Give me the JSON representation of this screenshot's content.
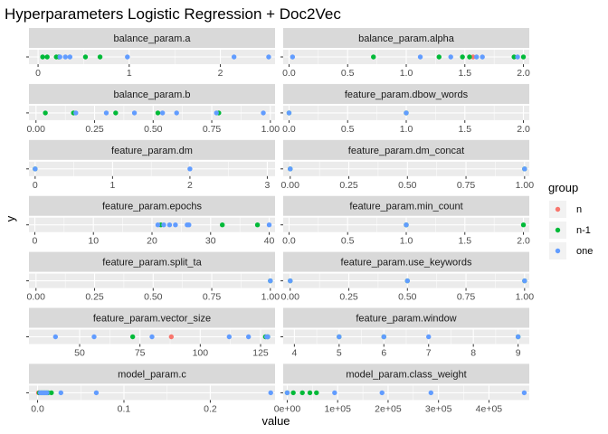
{
  "chart_data": {
    "type": "scatter",
    "title": "Hyperparameters Logistic Regression + Doc2Vec",
    "xlabel": "value",
    "ylabel": "y",
    "legend": {
      "title": "group",
      "position": "right",
      "items": [
        {
          "name": "n",
          "color": "#F8766D"
        },
        {
          "name": "n-1",
          "color": "#00BA38"
        },
        {
          "name": "one",
          "color": "#619CFF"
        }
      ]
    },
    "facets": [
      {
        "name": "balance_param.a",
        "xlim": [
          -0.1,
          2.6
        ],
        "ticks": [
          {
            "v": 0,
            "label": "0"
          },
          {
            "v": 1,
            "label": "1"
          },
          {
            "v": 2,
            "label": "2"
          }
        ],
        "points": [
          {
            "x": 0.05,
            "group": "n-1"
          },
          {
            "x": 0.1,
            "group": "n-1"
          },
          {
            "x": 0.2,
            "group": "n-1"
          },
          {
            "x": 0.23,
            "group": "n-1"
          },
          {
            "x": 0.52,
            "group": "n-1"
          },
          {
            "x": 0.68,
            "group": "n-1"
          },
          {
            "x": 0.24,
            "group": "one"
          },
          {
            "x": 0.3,
            "group": "one"
          },
          {
            "x": 0.35,
            "group": "one"
          },
          {
            "x": 0.98,
            "group": "one"
          },
          {
            "x": 2.15,
            "group": "one"
          },
          {
            "x": 2.53,
            "group": "one"
          }
        ]
      },
      {
        "name": "balance_param.alpha",
        "xlim": [
          -0.05,
          2.05
        ],
        "ticks": [
          {
            "v": 0,
            "label": "0.0"
          },
          {
            "v": 0.5,
            "label": "0.5"
          },
          {
            "v": 1,
            "label": "1.0"
          },
          {
            "v": 1.5,
            "label": "1.5"
          },
          {
            "v": 2,
            "label": "2.0"
          }
        ],
        "points": [
          {
            "x": 1.57,
            "group": "n"
          },
          {
            "x": 0.72,
            "group": "n-1"
          },
          {
            "x": 1.28,
            "group": "n-1"
          },
          {
            "x": 1.48,
            "group": "n-1"
          },
          {
            "x": 1.54,
            "group": "n-1"
          },
          {
            "x": 1.92,
            "group": "n-1"
          },
          {
            "x": 2.0,
            "group": "n-1"
          },
          {
            "x": 0.03,
            "group": "one"
          },
          {
            "x": 1.12,
            "group": "one"
          },
          {
            "x": 1.38,
            "group": "one"
          },
          {
            "x": 1.6,
            "group": "one"
          },
          {
            "x": 1.65,
            "group": "one"
          },
          {
            "x": 1.95,
            "group": "one"
          }
        ]
      },
      {
        "name": "balance_param.b",
        "xlim": [
          -0.03,
          1.02
        ],
        "ticks": [
          {
            "v": 0,
            "label": "0.00"
          },
          {
            "v": 0.25,
            "label": "0.25"
          },
          {
            "v": 0.5,
            "label": "0.50"
          },
          {
            "v": 0.75,
            "label": "0.75"
          },
          {
            "v": 1,
            "label": "1.00"
          }
        ],
        "points": [
          {
            "x": 0.04,
            "group": "n-1"
          },
          {
            "x": 0.16,
            "group": "n-1"
          },
          {
            "x": 0.34,
            "group": "n-1"
          },
          {
            "x": 0.52,
            "group": "n-1"
          },
          {
            "x": 0.78,
            "group": "n-1"
          },
          {
            "x": 0.17,
            "group": "one"
          },
          {
            "x": 0.3,
            "group": "one"
          },
          {
            "x": 0.42,
            "group": "one"
          },
          {
            "x": 0.54,
            "group": "one"
          },
          {
            "x": 0.6,
            "group": "one"
          },
          {
            "x": 0.77,
            "group": "one"
          },
          {
            "x": 0.97,
            "group": "one"
          }
        ]
      },
      {
        "name": "feature_param.dbow_words",
        "xlim": [
          -0.05,
          2.05
        ],
        "ticks": [
          {
            "v": 0,
            "label": "0.0"
          },
          {
            "v": 0.5,
            "label": "0.5"
          },
          {
            "v": 1,
            "label": "1.0"
          },
          {
            "v": 1.5,
            "label": "1.5"
          },
          {
            "v": 2,
            "label": "2.0"
          }
        ],
        "points": [
          {
            "x": 0,
            "group": "n-1"
          },
          {
            "x": 1,
            "group": "n-1"
          },
          {
            "x": 0,
            "group": "one"
          },
          {
            "x": 1,
            "group": "one"
          }
        ]
      },
      {
        "name": "feature_param.dm",
        "xlim": [
          -0.08,
          3.1
        ],
        "ticks": [
          {
            "v": 0,
            "label": "0"
          },
          {
            "v": 1,
            "label": "1"
          },
          {
            "v": 2,
            "label": "2"
          },
          {
            "v": 3,
            "label": "3"
          }
        ],
        "points": [
          {
            "x": 0,
            "group": "n-1"
          },
          {
            "x": 0,
            "group": "one"
          },
          {
            "x": 2,
            "group": "one"
          }
        ]
      },
      {
        "name": "feature_param.dm_concat",
        "xlim": [
          -0.03,
          1.02
        ],
        "ticks": [
          {
            "v": 0,
            "label": "0.00"
          },
          {
            "v": 0.25,
            "label": "0.25"
          },
          {
            "v": 0.5,
            "label": "0.50"
          },
          {
            "v": 0.75,
            "label": "0.75"
          },
          {
            "v": 1,
            "label": "1.00"
          }
        ],
        "points": [
          {
            "x": 0,
            "group": "n-1"
          },
          {
            "x": 1,
            "group": "n-1"
          },
          {
            "x": 0,
            "group": "one"
          },
          {
            "x": 1,
            "group": "one"
          }
        ]
      },
      {
        "name": "feature_param.epochs",
        "xlim": [
          -1,
          41
        ],
        "ticks": [
          {
            "v": 0,
            "label": "0"
          },
          {
            "v": 10,
            "label": "10"
          },
          {
            "v": 20,
            "label": "20"
          },
          {
            "v": 30,
            "label": "30"
          },
          {
            "v": 40,
            "label": "40"
          }
        ],
        "points": [
          {
            "x": 21.5,
            "group": "n-1"
          },
          {
            "x": 32,
            "group": "n-1"
          },
          {
            "x": 38,
            "group": "n-1"
          },
          {
            "x": 21,
            "group": "one"
          },
          {
            "x": 22,
            "group": "one"
          },
          {
            "x": 23,
            "group": "one"
          },
          {
            "x": 24,
            "group": "one"
          },
          {
            "x": 26,
            "group": "one"
          },
          {
            "x": 26.3,
            "group": "one"
          },
          {
            "x": 40,
            "group": "one"
          }
        ]
      },
      {
        "name": "feature_param.min_count",
        "xlim": [
          -0.05,
          2.05
        ],
        "ticks": [
          {
            "v": 0,
            "label": "0.0"
          },
          {
            "v": 0.5,
            "label": "0.5"
          },
          {
            "v": 1,
            "label": "1.0"
          },
          {
            "v": 1.5,
            "label": "1.5"
          },
          {
            "v": 2,
            "label": "2.0"
          }
        ],
        "points": [
          {
            "x": 1,
            "group": "n-1"
          },
          {
            "x": 2,
            "group": "n-1"
          },
          {
            "x": 1,
            "group": "one"
          }
        ]
      },
      {
        "name": "feature_param.split_ta",
        "xlim": [
          -0.03,
          1.02
        ],
        "ticks": [
          {
            "v": 0,
            "label": "0.00"
          },
          {
            "v": 0.25,
            "label": "0.25"
          },
          {
            "v": 0.5,
            "label": "0.50"
          },
          {
            "v": 0.75,
            "label": "0.75"
          },
          {
            "v": 1,
            "label": "1.00"
          }
        ],
        "points": [
          {
            "x": 1,
            "group": "n-1"
          },
          {
            "x": 1,
            "group": "one"
          }
        ]
      },
      {
        "name": "feature_param.use_keywords",
        "xlim": [
          -0.03,
          1.02
        ],
        "ticks": [
          {
            "v": 0,
            "label": "0.00"
          },
          {
            "v": 0.25,
            "label": "0.25"
          },
          {
            "v": 0.5,
            "label": "0.50"
          },
          {
            "v": 0.75,
            "label": "0.75"
          },
          {
            "v": 1,
            "label": "1.00"
          }
        ],
        "points": [
          {
            "x": 0,
            "group": "n-1"
          },
          {
            "x": 0.5,
            "group": "n-1"
          },
          {
            "x": 1,
            "group": "n-1"
          },
          {
            "x": 0,
            "group": "one"
          },
          {
            "x": 0.5,
            "group": "one"
          },
          {
            "x": 1,
            "group": "one"
          }
        ]
      },
      {
        "name": "feature_param.vector_size",
        "xlim": [
          29,
          131
        ],
        "ticks": [
          {
            "v": 50,
            "label": "50"
          },
          {
            "v": 75,
            "label": "75"
          },
          {
            "v": 100,
            "label": "100"
          },
          {
            "v": 125,
            "label": "125"
          }
        ],
        "points": [
          {
            "x": 88,
            "group": "n"
          },
          {
            "x": 72,
            "group": "n-1"
          },
          {
            "x": 127,
            "group": "n-1"
          },
          {
            "x": 128,
            "group": "n-1"
          },
          {
            "x": 40,
            "group": "one"
          },
          {
            "x": 56,
            "group": "one"
          },
          {
            "x": 80,
            "group": "one"
          },
          {
            "x": 112,
            "group": "one"
          },
          {
            "x": 120,
            "group": "one"
          },
          {
            "x": 127.5,
            "group": "one"
          },
          {
            "x": 128,
            "group": "one"
          }
        ]
      },
      {
        "name": "feature_param.window",
        "xlim": [
          3.75,
          9.25
        ],
        "ticks": [
          {
            "v": 4,
            "label": "4"
          },
          {
            "v": 5,
            "label": "5"
          },
          {
            "v": 6,
            "label": "6"
          },
          {
            "v": 7,
            "label": "7"
          },
          {
            "v": 8,
            "label": "8"
          },
          {
            "v": 9,
            "label": "9"
          }
        ],
        "points": [
          {
            "x": 5,
            "group": "n-1"
          },
          {
            "x": 6,
            "group": "n-1"
          },
          {
            "x": 9,
            "group": "n-1"
          },
          {
            "x": 5,
            "group": "one"
          },
          {
            "x": 6,
            "group": "one"
          },
          {
            "x": 7,
            "group": "one"
          },
          {
            "x": 9,
            "group": "one"
          }
        ]
      },
      {
        "name": "model_param.c",
        "xlim": [
          -0.01,
          0.275
        ],
        "ticks": [
          {
            "v": 0,
            "label": "0.0"
          },
          {
            "v": 0.1,
            "label": "0.1"
          },
          {
            "v": 0.2,
            "label": "0.2"
          }
        ],
        "points": [
          {
            "x": 0.001,
            "group": "n"
          },
          {
            "x": 0.002,
            "group": "n-1"
          },
          {
            "x": 0.004,
            "group": "n-1"
          },
          {
            "x": 0.006,
            "group": "n-1"
          },
          {
            "x": 0.008,
            "group": "n-1"
          },
          {
            "x": 0.01,
            "group": "n-1"
          },
          {
            "x": 0.012,
            "group": "n-1"
          },
          {
            "x": 0.016,
            "group": "n-1"
          },
          {
            "x": 0.003,
            "group": "one"
          },
          {
            "x": 0.005,
            "group": "one"
          },
          {
            "x": 0.007,
            "group": "one"
          },
          {
            "x": 0.009,
            "group": "one"
          },
          {
            "x": 0.011,
            "group": "one"
          },
          {
            "x": 0.027,
            "group": "one"
          },
          {
            "x": 0.068,
            "group": "one"
          },
          {
            "x": 0.27,
            "group": "one"
          }
        ]
      },
      {
        "name": "model_param.class_weight",
        "xlim": [
          -8000,
          480000
        ],
        "ticks": [
          {
            "v": 0,
            "label": "0e+00"
          },
          {
            "v": 100000,
            "label": "1e+05"
          },
          {
            "v": 200000,
            "label": "2e+05"
          },
          {
            "v": 300000,
            "label": "3e+05"
          },
          {
            "v": 400000,
            "label": "4e+05"
          }
        ],
        "points": [
          {
            "x": 0,
            "group": "n-1"
          },
          {
            "x": 12000,
            "group": "n-1"
          },
          {
            "x": 30000,
            "group": "n-1"
          },
          {
            "x": 45000,
            "group": "n-1"
          },
          {
            "x": 58000,
            "group": "n-1"
          },
          {
            "x": 0,
            "group": "one"
          },
          {
            "x": 94000,
            "group": "one"
          },
          {
            "x": 188000,
            "group": "one"
          },
          {
            "x": 285000,
            "group": "one"
          },
          {
            "x": 470000,
            "group": "one"
          }
        ]
      }
    ]
  }
}
